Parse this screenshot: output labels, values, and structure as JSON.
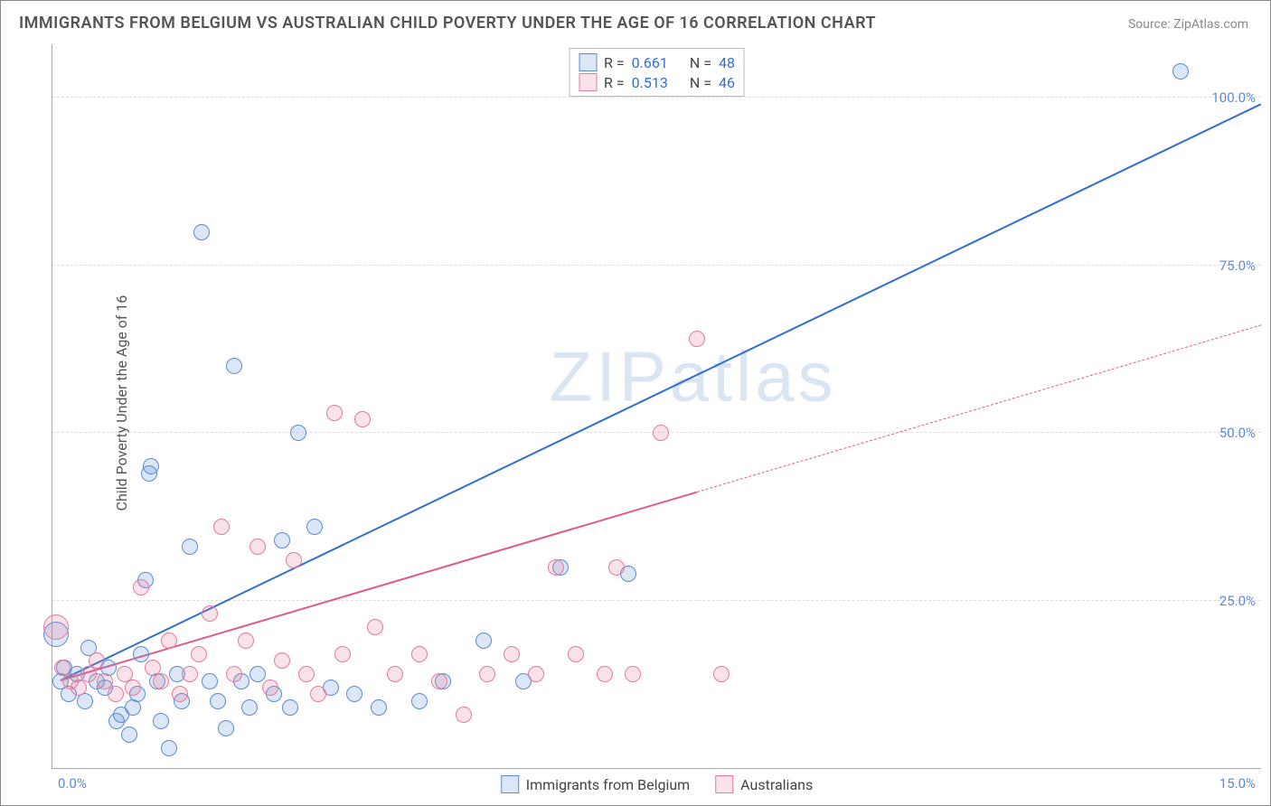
{
  "title": "IMMIGRANTS FROM BELGIUM VS AUSTRALIAN CHILD POVERTY UNDER THE AGE OF 16 CORRELATION CHART",
  "source_prefix": "Source: ",
  "source_name": "ZipAtlas.com",
  "ylabel": "Child Poverty Under the Age of 16",
  "watermark": "ZIPatlas",
  "chart": {
    "type": "scatter-with-regression",
    "background_color": "#ffffff",
    "grid_color": "#dddddd",
    "axis_color": "#aaaaaa",
    "tick_color": "#5b8bd4",
    "xlim": [
      0,
      15
    ],
    "ylim": [
      0,
      108
    ],
    "yticks": [
      25,
      50,
      75,
      100
    ],
    "ytick_labels": [
      "25.0%",
      "50.0%",
      "75.0%",
      "100.0%"
    ],
    "xtick_left": "0.0%",
    "xtick_right": "15.0%",
    "marker_radius": 9,
    "marker_radius_large": 14,
    "marker_border_width": 1.5,
    "marker_fill_opacity": 0.22,
    "line_width_solid": 2.2,
    "line_width_dashed": 1.2
  },
  "series": [
    {
      "key": "belgium",
      "label": "Immigrants from Belgium",
      "color_border": "#5b8bd4",
      "color_fill": "rgba(91,139,212,0.22)",
      "line_color": "#2f6fd0",
      "R_label": "R =",
      "R_value": "0.661",
      "N_label": "N =",
      "N_value": "48",
      "regression": {
        "x1": 0.1,
        "y1": 13,
        "x2": 15,
        "y2": 99,
        "dashed_from_x": null
      },
      "points": [
        {
          "x": 0.05,
          "y": 20,
          "r": 14
        },
        {
          "x": 0.1,
          "y": 13
        },
        {
          "x": 0.15,
          "y": 15
        },
        {
          "x": 0.2,
          "y": 11
        },
        {
          "x": 0.3,
          "y": 14
        },
        {
          "x": 0.4,
          "y": 10
        },
        {
          "x": 0.45,
          "y": 18
        },
        {
          "x": 0.55,
          "y": 13
        },
        {
          "x": 0.65,
          "y": 12
        },
        {
          "x": 0.7,
          "y": 15
        },
        {
          "x": 0.8,
          "y": 7
        },
        {
          "x": 0.85,
          "y": 8
        },
        {
          "x": 0.95,
          "y": 5
        },
        {
          "x": 1.0,
          "y": 9
        },
        {
          "x": 1.05,
          "y": 11
        },
        {
          "x": 1.1,
          "y": 17
        },
        {
          "x": 1.15,
          "y": 28
        },
        {
          "x": 1.2,
          "y": 44
        },
        {
          "x": 1.22,
          "y": 45
        },
        {
          "x": 1.3,
          "y": 13
        },
        {
          "x": 1.35,
          "y": 7
        },
        {
          "x": 1.45,
          "y": 3
        },
        {
          "x": 1.55,
          "y": 14
        },
        {
          "x": 1.6,
          "y": 10
        },
        {
          "x": 1.7,
          "y": 33
        },
        {
          "x": 1.85,
          "y": 80
        },
        {
          "x": 1.95,
          "y": 13
        },
        {
          "x": 2.05,
          "y": 10
        },
        {
          "x": 2.15,
          "y": 6
        },
        {
          "x": 2.25,
          "y": 60
        },
        {
          "x": 2.35,
          "y": 13
        },
        {
          "x": 2.45,
          "y": 9
        },
        {
          "x": 2.55,
          "y": 14
        },
        {
          "x": 2.75,
          "y": 11
        },
        {
          "x": 2.85,
          "y": 34
        },
        {
          "x": 2.95,
          "y": 9
        },
        {
          "x": 3.05,
          "y": 50
        },
        {
          "x": 3.25,
          "y": 36
        },
        {
          "x": 3.45,
          "y": 12
        },
        {
          "x": 3.75,
          "y": 11
        },
        {
          "x": 4.05,
          "y": 9
        },
        {
          "x": 4.55,
          "y": 10
        },
        {
          "x": 4.85,
          "y": 13
        },
        {
          "x": 5.35,
          "y": 19
        },
        {
          "x": 5.85,
          "y": 13
        },
        {
          "x": 6.3,
          "y": 30
        },
        {
          "x": 7.15,
          "y": 29
        },
        {
          "x": 14.0,
          "y": 104
        }
      ]
    },
    {
      "key": "australians",
      "label": "Australians",
      "color_border": "#e47a9a",
      "color_fill": "rgba(228,122,154,0.22)",
      "line_color": "#e05a85",
      "R_label": "R =",
      "R_value": "0.513",
      "N_label": "N =",
      "N_value": "46",
      "regression": {
        "x1": 0.1,
        "y1": 13,
        "x2": 15,
        "y2": 66,
        "dashed_from_x": 8.0
      },
      "points": [
        {
          "x": 0.05,
          "y": 21,
          "r": 14
        },
        {
          "x": 0.12,
          "y": 15
        },
        {
          "x": 0.22,
          "y": 13
        },
        {
          "x": 0.32,
          "y": 12
        },
        {
          "x": 0.45,
          "y": 14
        },
        {
          "x": 0.55,
          "y": 16
        },
        {
          "x": 0.65,
          "y": 13
        },
        {
          "x": 0.78,
          "y": 11
        },
        {
          "x": 0.9,
          "y": 14
        },
        {
          "x": 1.0,
          "y": 12
        },
        {
          "x": 1.1,
          "y": 27
        },
        {
          "x": 1.25,
          "y": 15
        },
        {
          "x": 1.35,
          "y": 13
        },
        {
          "x": 1.45,
          "y": 19
        },
        {
          "x": 1.58,
          "y": 11
        },
        {
          "x": 1.7,
          "y": 14
        },
        {
          "x": 1.82,
          "y": 17
        },
        {
          "x": 1.95,
          "y": 23
        },
        {
          "x": 2.1,
          "y": 36
        },
        {
          "x": 2.25,
          "y": 14
        },
        {
          "x": 2.4,
          "y": 19
        },
        {
          "x": 2.55,
          "y": 33
        },
        {
          "x": 2.7,
          "y": 12
        },
        {
          "x": 2.85,
          "y": 16
        },
        {
          "x": 3.0,
          "y": 31
        },
        {
          "x": 3.15,
          "y": 14
        },
        {
          "x": 3.3,
          "y": 11
        },
        {
          "x": 3.5,
          "y": 53
        },
        {
          "x": 3.6,
          "y": 17
        },
        {
          "x": 3.85,
          "y": 52
        },
        {
          "x": 4.0,
          "y": 21
        },
        {
          "x": 4.25,
          "y": 14
        },
        {
          "x": 4.55,
          "y": 17
        },
        {
          "x": 4.8,
          "y": 13
        },
        {
          "x": 5.1,
          "y": 8
        },
        {
          "x": 5.4,
          "y": 14
        },
        {
          "x": 5.7,
          "y": 17
        },
        {
          "x": 6.0,
          "y": 14
        },
        {
          "x": 6.25,
          "y": 30
        },
        {
          "x": 6.5,
          "y": 17
        },
        {
          "x": 6.85,
          "y": 14
        },
        {
          "x": 7.0,
          "y": 30
        },
        {
          "x": 7.2,
          "y": 14
        },
        {
          "x": 7.55,
          "y": 50
        },
        {
          "x": 8.0,
          "y": 64
        },
        {
          "x": 8.3,
          "y": 14
        }
      ]
    }
  ]
}
